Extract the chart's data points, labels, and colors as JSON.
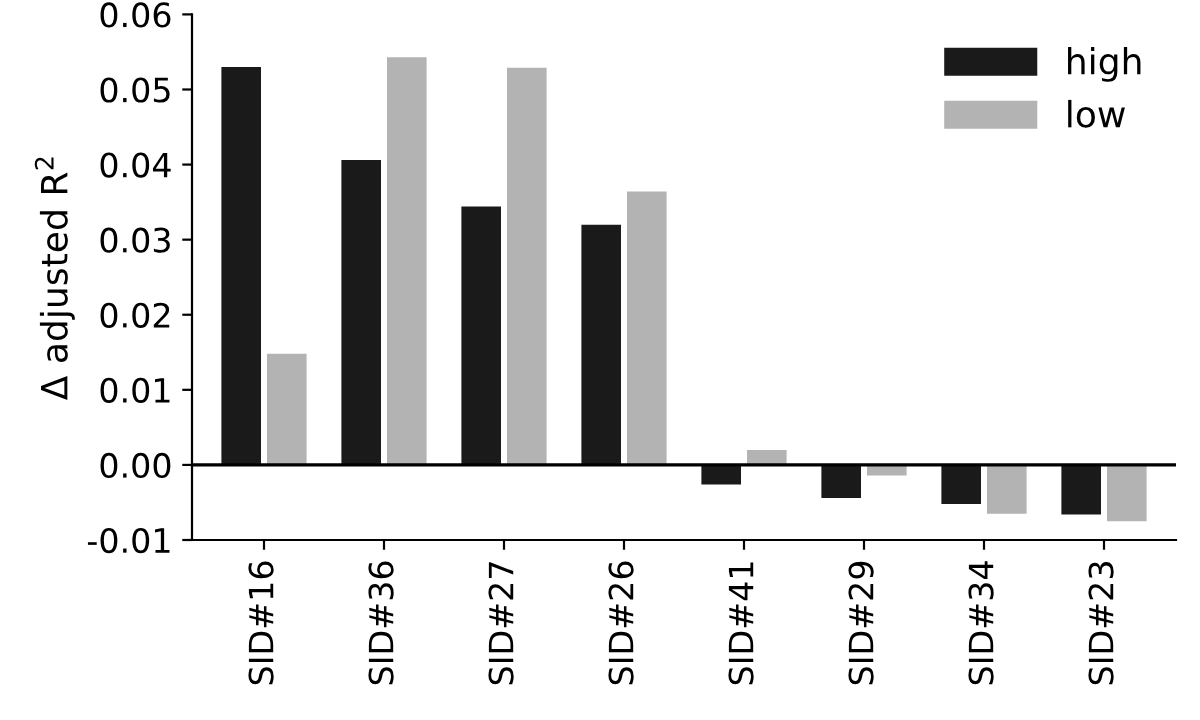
{
  "chart_data": {
    "type": "bar",
    "ylabel": "Δ adjusted R$^{2}$",
    "categories": [
      "SID#16",
      "SID#36",
      "SID#27",
      "SID#26",
      "SID#41",
      "SID#29",
      "SID#34",
      "SID#23"
    ],
    "series": [
      {
        "name": "high",
        "color": "#1a1a1a",
        "values": [
          0.053,
          0.0406,
          0.0344,
          0.032,
          -0.0026,
          -0.0044,
          -0.0052,
          -0.0066
        ]
      },
      {
        "name": "low",
        "color": "#b3b3b3",
        "values": [
          0.0148,
          0.0543,
          0.0529,
          0.0364,
          0.002,
          -0.0014,
          -0.0065,
          -0.0075
        ]
      }
    ],
    "ylim": [
      -0.01,
      0.06
    ],
    "yticks": [
      {
        "value": -0.01,
        "label": "-0.01"
      },
      {
        "value": 0,
        "label": "0.00"
      },
      {
        "value": 0.01,
        "label": "0.01"
      },
      {
        "value": 0.02,
        "label": "0.02"
      },
      {
        "value": 0.03,
        "label": "0.03"
      },
      {
        "value": 0.04,
        "label": "0.04"
      },
      {
        "value": 0.05,
        "label": "0.05"
      },
      {
        "value": 0.06,
        "label": "0.06"
      }
    ],
    "ref_lines": [
      {
        "axis": "y",
        "value": 0,
        "color": "#000000"
      }
    ],
    "legend": "top right",
    "grid": false
  }
}
